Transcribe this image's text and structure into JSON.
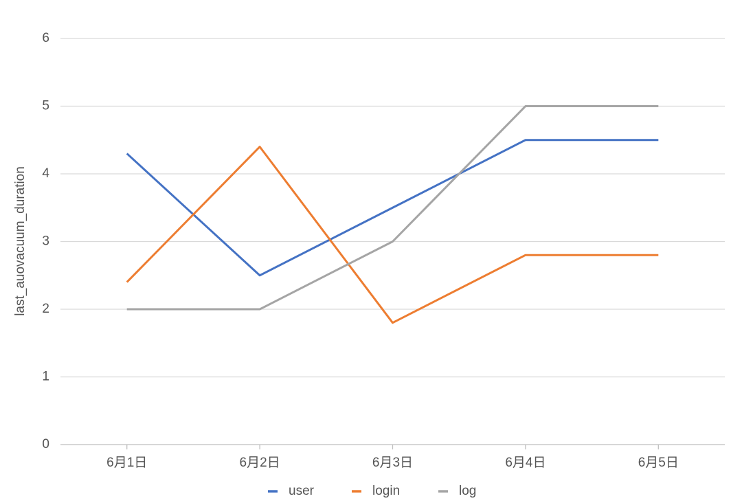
{
  "chart_data": {
    "type": "line",
    "y_label": "last_auovacuum_duration",
    "categories": [
      "6月1日",
      "6月2日",
      "6月3日",
      "6月4日",
      "6月5日"
    ],
    "series": [
      {
        "name": "user",
        "color": "#4472c4",
        "values": [
          4.3,
          2.5,
          3.5,
          4.5,
          4.5
        ]
      },
      {
        "name": "login",
        "color": "#ed7d31",
        "values": [
          2.4,
          4.4,
          1.8,
          2.8,
          2.8
        ]
      },
      {
        "name": "log",
        "color": "#a5a5a5",
        "values": [
          2,
          2,
          3,
          5,
          5
        ]
      }
    ],
    "ylim": [
      0,
      6
    ],
    "yticks": [
      0,
      1,
      2,
      3,
      4,
      5,
      6
    ],
    "grid": true,
    "legend": "bottom"
  }
}
